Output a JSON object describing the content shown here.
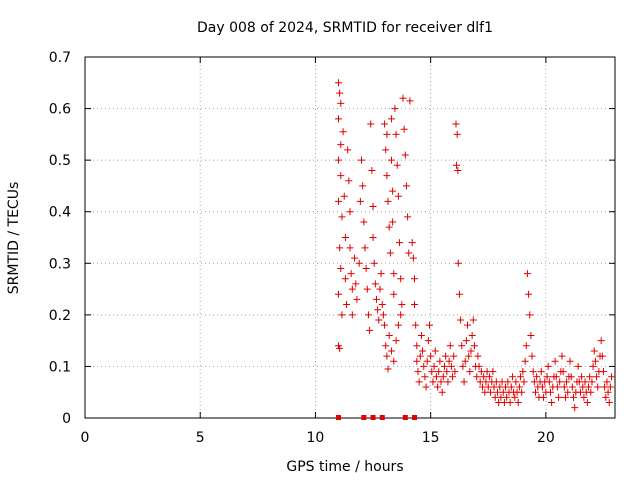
{
  "chart_data": {
    "type": "scatter",
    "title": "Day 008 of 2024, SRMTID for receiver dlf1",
    "xlabel": "GPS time / hours",
    "ylabel": "SRMTID / TECUs",
    "xlim": [
      0,
      23
    ],
    "ylim": [
      0,
      0.7
    ],
    "xticks": [
      0,
      5,
      10,
      15,
      20
    ],
    "xtick_labels": [
      "0",
      "5",
      "10",
      "15",
      "20"
    ],
    "yticks": [
      0,
      0.1,
      0.2,
      0.3,
      0.4,
      0.5,
      0.6,
      0.7
    ],
    "ytick_labels": [
      "0",
      "0.1",
      "0.2",
      "0.3",
      "0.4",
      "0.5",
      "0.6",
      "0.7"
    ],
    "grid": true,
    "marker": "+",
    "color": "#e00000",
    "series": [
      {
        "name": "SRMTID",
        "points": [
          [
            11.0,
            0.65
          ],
          [
            11.05,
            0.63
          ],
          [
            11.1,
            0.61
          ],
          [
            11.0,
            0.58
          ],
          [
            11.1,
            0.53
          ],
          [
            11.0,
            0.5
          ],
          [
            11.1,
            0.47
          ],
          [
            11.0,
            0.42
          ],
          [
            11.15,
            0.39
          ],
          [
            11.05,
            0.33
          ],
          [
            11.1,
            0.29
          ],
          [
            11.0,
            0.24
          ],
          [
            11.15,
            0.2
          ],
          [
            11.0,
            0.14
          ],
          [
            11.05,
            0.135
          ],
          [
            11.2,
            0.555
          ],
          [
            11.25,
            0.43
          ],
          [
            11.3,
            0.35
          ],
          [
            11.3,
            0.27
          ],
          [
            11.35,
            0.22
          ],
          [
            11.4,
            0.52
          ],
          [
            11.45,
            0.46
          ],
          [
            11.5,
            0.4
          ],
          [
            11.5,
            0.33
          ],
          [
            11.55,
            0.28
          ],
          [
            11.6,
            0.25
          ],
          [
            11.6,
            0.2
          ],
          [
            11.7,
            0.31
          ],
          [
            11.75,
            0.26
          ],
          [
            11.8,
            0.23
          ],
          [
            11.9,
            0.3
          ],
          [
            11.95,
            0.42
          ],
          [
            12.0,
            0.5
          ],
          [
            12.05,
            0.45
          ],
          [
            12.1,
            0.38
          ],
          [
            12.15,
            0.33
          ],
          [
            12.2,
            0.29
          ],
          [
            12.25,
            0.25
          ],
          [
            12.3,
            0.2
          ],
          [
            12.35,
            0.17
          ],
          [
            12.4,
            0.57
          ],
          [
            12.45,
            0.48
          ],
          [
            12.5,
            0.41
          ],
          [
            12.5,
            0.35
          ],
          [
            12.55,
            0.3
          ],
          [
            12.6,
            0.26
          ],
          [
            12.65,
            0.23
          ],
          [
            12.7,
            0.21
          ],
          [
            12.75,
            0.19
          ],
          [
            12.8,
            0.25
          ],
          [
            12.85,
            0.28
          ],
          [
            12.9,
            0.22
          ],
          [
            12.95,
            0.2
          ],
          [
            13.0,
            0.57
          ],
          [
            13.05,
            0.52
          ],
          [
            13.1,
            0.47
          ],
          [
            13.15,
            0.42
          ],
          [
            13.2,
            0.37
          ],
          [
            13.1,
            0.55
          ],
          [
            13.25,
            0.32
          ],
          [
            13.3,
            0.58
          ],
          [
            13.3,
            0.5
          ],
          [
            13.35,
            0.44
          ],
          [
            13.35,
            0.38
          ],
          [
            13.4,
            0.28
          ],
          [
            13.4,
            0.24
          ],
          [
            13.45,
            0.6
          ],
          [
            13.5,
            0.55
          ],
          [
            13.55,
            0.49
          ],
          [
            13.6,
            0.43
          ],
          [
            13.65,
            0.34
          ],
          [
            13.7,
            0.27
          ],
          [
            13.75,
            0.22
          ],
          [
            13.8,
            0.62
          ],
          [
            13.85,
            0.56
          ],
          [
            13.9,
            0.51
          ],
          [
            13.95,
            0.45
          ],
          [
            14.0,
            0.39
          ],
          [
            14.05,
            0.32
          ],
          [
            14.1,
            0.615
          ],
          [
            13.0,
            0.18
          ],
          [
            13.05,
            0.14
          ],
          [
            13.1,
            0.12
          ],
          [
            13.15,
            0.095
          ],
          [
            13.2,
            0.16
          ],
          [
            13.3,
            0.13
          ],
          [
            13.4,
            0.11
          ],
          [
            13.5,
            0.15
          ],
          [
            13.6,
            0.18
          ],
          [
            13.7,
            0.2
          ],
          [
            14.2,
            0.34
          ],
          [
            14.25,
            0.31
          ],
          [
            14.3,
            0.27
          ],
          [
            14.3,
            0.22
          ],
          [
            14.35,
            0.18
          ],
          [
            14.4,
            0.14
          ],
          [
            14.4,
            0.11
          ],
          [
            14.45,
            0.09
          ],
          [
            14.5,
            0.07
          ],
          [
            14.55,
            0.12
          ],
          [
            14.6,
            0.16
          ],
          [
            14.65,
            0.13
          ],
          [
            14.7,
            0.1
          ],
          [
            14.75,
            0.08
          ],
          [
            14.8,
            0.06
          ],
          [
            14.85,
            0.11
          ],
          [
            14.9,
            0.15
          ],
          [
            14.95,
            0.18
          ],
          [
            15.0,
            0.12
          ],
          [
            15.05,
            0.09
          ],
          [
            15.1,
            0.07
          ],
          [
            15.15,
            0.1
          ],
          [
            15.2,
            0.13
          ],
          [
            15.25,
            0.08
          ],
          [
            15.3,
            0.06
          ],
          [
            15.35,
            0.09
          ],
          [
            15.4,
            0.11
          ],
          [
            15.45,
            0.07
          ],
          [
            15.5,
            0.05
          ],
          [
            15.55,
            0.08
          ],
          [
            15.6,
            0.1
          ],
          [
            15.65,
            0.12
          ],
          [
            15.7,
            0.09
          ],
          [
            15.75,
            0.07
          ],
          [
            15.8,
            0.11
          ],
          [
            15.85,
            0.14
          ],
          [
            15.9,
            0.1
          ],
          [
            15.95,
            0.08
          ],
          [
            16.0,
            0.12
          ],
          [
            16.05,
            0.09
          ],
          [
            16.1,
            0.57
          ],
          [
            16.15,
            0.55
          ],
          [
            16.12,
            0.49
          ],
          [
            16.18,
            0.48
          ],
          [
            16.2,
            0.3
          ],
          [
            16.25,
            0.24
          ],
          [
            16.3,
            0.19
          ],
          [
            16.35,
            0.14
          ],
          [
            16.4,
            0.1
          ],
          [
            16.45,
            0.07
          ],
          [
            16.5,
            0.11
          ],
          [
            16.55,
            0.15
          ],
          [
            16.6,
            0.18
          ],
          [
            16.65,
            0.12
          ],
          [
            16.7,
            0.09
          ],
          [
            16.75,
            0.13
          ],
          [
            16.8,
            0.16
          ],
          [
            16.85,
            0.19
          ],
          [
            16.9,
            0.14
          ],
          [
            16.95,
            0.1
          ],
          [
            17.0,
            0.08
          ],
          [
            17.05,
            0.12
          ],
          [
            17.1,
            0.1
          ],
          [
            17.15,
            0.07
          ],
          [
            17.2,
            0.09
          ],
          [
            17.25,
            0.06
          ],
          [
            17.3,
            0.08
          ],
          [
            17.35,
            0.05
          ],
          [
            17.4,
            0.07
          ],
          [
            17.45,
            0.09
          ],
          [
            17.5,
            0.06
          ],
          [
            17.55,
            0.08
          ],
          [
            17.6,
            0.05
          ],
          [
            17.65,
            0.07
          ],
          [
            17.7,
            0.09
          ],
          [
            17.75,
            0.06
          ],
          [
            17.8,
            0.04
          ],
          [
            17.85,
            0.07
          ],
          [
            17.9,
            0.05
          ],
          [
            17.95,
            0.03
          ],
          [
            18.0,
            0.06
          ],
          [
            18.05,
            0.04
          ],
          [
            18.1,
            0.07
          ],
          [
            18.15,
            0.05
          ],
          [
            18.2,
            0.03
          ],
          [
            18.25,
            0.06
          ],
          [
            18.3,
            0.04
          ],
          [
            18.35,
            0.07
          ],
          [
            18.4,
            0.05
          ],
          [
            18.45,
            0.03
          ],
          [
            18.5,
            0.06
          ],
          [
            18.55,
            0.08
          ],
          [
            18.6,
            0.05
          ],
          [
            18.65,
            0.04
          ],
          [
            18.7,
            0.07
          ],
          [
            18.75,
            0.05
          ],
          [
            18.8,
            0.03
          ],
          [
            18.85,
            0.06
          ],
          [
            18.9,
            0.08
          ],
          [
            18.95,
            0.05
          ],
          [
            19.0,
            0.09
          ],
          [
            19.05,
            0.07
          ],
          [
            19.1,
            0.11
          ],
          [
            19.15,
            0.14
          ],
          [
            19.2,
            0.28
          ],
          [
            19.25,
            0.24
          ],
          [
            19.3,
            0.2
          ],
          [
            19.35,
            0.16
          ],
          [
            19.4,
            0.12
          ],
          [
            19.45,
            0.09
          ],
          [
            19.5,
            0.07
          ],
          [
            19.55,
            0.05
          ],
          [
            19.6,
            0.08
          ],
          [
            19.65,
            0.06
          ],
          [
            19.7,
            0.04
          ],
          [
            19.75,
            0.07
          ],
          [
            19.8,
            0.09
          ],
          [
            19.85,
            0.06
          ],
          [
            19.9,
            0.04
          ],
          [
            19.95,
            0.07
          ],
          [
            20.0,
            0.05
          ],
          [
            20.05,
            0.08
          ],
          [
            20.1,
            0.1
          ],
          [
            20.15,
            0.07
          ],
          [
            20.2,
            0.05
          ],
          [
            20.25,
            0.03
          ],
          [
            20.3,
            0.06
          ],
          [
            20.35,
            0.08
          ],
          [
            20.4,
            0.11
          ],
          [
            20.45,
            0.08
          ],
          [
            20.5,
            0.06
          ],
          [
            20.55,
            0.04
          ],
          [
            20.6,
            0.07
          ],
          [
            20.65,
            0.09
          ],
          [
            20.7,
            0.12
          ],
          [
            20.75,
            0.09
          ],
          [
            20.8,
            0.06
          ],
          [
            20.85,
            0.04
          ],
          [
            20.9,
            0.07
          ],
          [
            20.95,
            0.05
          ],
          [
            21.0,
            0.08
          ],
          [
            21.05,
            0.11
          ],
          [
            21.1,
            0.08
          ],
          [
            21.15,
            0.06
          ],
          [
            21.2,
            0.04
          ],
          [
            21.25,
            0.02
          ],
          [
            21.3,
            0.05
          ],
          [
            21.35,
            0.07
          ],
          [
            21.4,
            0.1
          ],
          [
            21.45,
            0.07
          ],
          [
            21.5,
            0.05
          ],
          [
            21.55,
            0.08
          ],
          [
            21.6,
            0.06
          ],
          [
            21.65,
            0.04
          ],
          [
            21.7,
            0.07
          ],
          [
            21.75,
            0.05
          ],
          [
            21.8,
            0.03
          ],
          [
            21.85,
            0.06
          ],
          [
            21.9,
            0.08
          ],
          [
            21.95,
            0.05
          ],
          [
            22.0,
            0.07
          ],
          [
            22.05,
            0.1
          ],
          [
            22.1,
            0.13
          ],
          [
            22.15,
            0.11
          ],
          [
            22.2,
            0.08
          ],
          [
            22.25,
            0.06
          ],
          [
            22.3,
            0.09
          ],
          [
            22.35,
            0.12
          ],
          [
            22.4,
            0.15
          ],
          [
            22.45,
            0.12
          ],
          [
            22.5,
            0.09
          ],
          [
            22.55,
            0.06
          ],
          [
            22.6,
            0.04
          ],
          [
            22.65,
            0.07
          ],
          [
            22.7,
            0.05
          ],
          [
            22.75,
            0.03
          ],
          [
            22.8,
            0.06
          ],
          [
            22.85,
            0.08
          ]
        ]
      }
    ],
    "baseline_markers_x": [
      11.0,
      12.1,
      12.5,
      12.9,
      13.9,
      14.3
    ]
  }
}
